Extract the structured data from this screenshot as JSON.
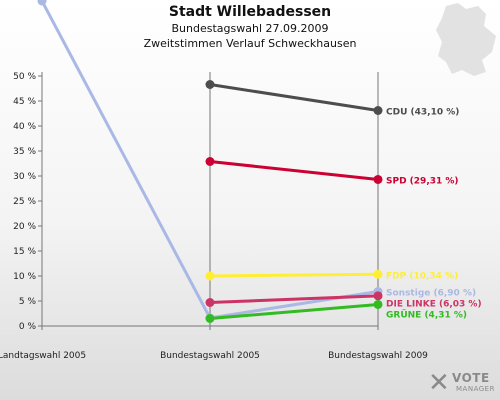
{
  "title": "Stadt Willebadessen",
  "subtitle": "Bundestagswahl 27.09.2009",
  "subtitle2": "Zweitstimmen Verlauf Schweckhausen",
  "logo": {
    "word1": "VOTE",
    "word2": "MANAGER",
    "icon": "ballot-x-icon"
  },
  "chart_data": {
    "type": "line",
    "x": [
      "Landtagswahl 2005",
      "Bundestagswahl 2005",
      "Bundestagswahl 2009"
    ],
    "ylim": [
      0,
      50
    ],
    "yticks": [
      "0 %",
      "5 %",
      "10 %",
      "15 %",
      "20 %",
      "25 %",
      "30 %",
      "35 %",
      "40 %",
      "45 %",
      "50 %"
    ],
    "grid": false,
    "series": [
      {
        "name": "CDU",
        "label": "CDU (43,10 %)",
        "color": "#4d4d4d",
        "values": [
          null,
          48.3,
          43.1
        ]
      },
      {
        "name": "SPD",
        "label": "SPD (29,31 %)",
        "color": "#cc0033",
        "values": [
          null,
          32.9,
          29.31
        ]
      },
      {
        "name": "FDP",
        "label": "FDP (10,34 %)",
        "color": "#ffee33",
        "values": [
          null,
          10.0,
          10.34
        ]
      },
      {
        "name": "Sonstige",
        "label": "Sonstige (6,90 %)",
        "color": "#aab8e6",
        "values": [
          65.0,
          1.6,
          6.9
        ]
      },
      {
        "name": "DIE LINKE",
        "label": "DIE LINKE (6,03 %)",
        "color": "#cc3366",
        "values": [
          null,
          4.7,
          6.03
        ]
      },
      {
        "name": "GRÜNE",
        "label": "GRÜNE (4,31 %)",
        "color": "#33bb22",
        "values": [
          null,
          1.5,
          4.31
        ]
      }
    ]
  }
}
